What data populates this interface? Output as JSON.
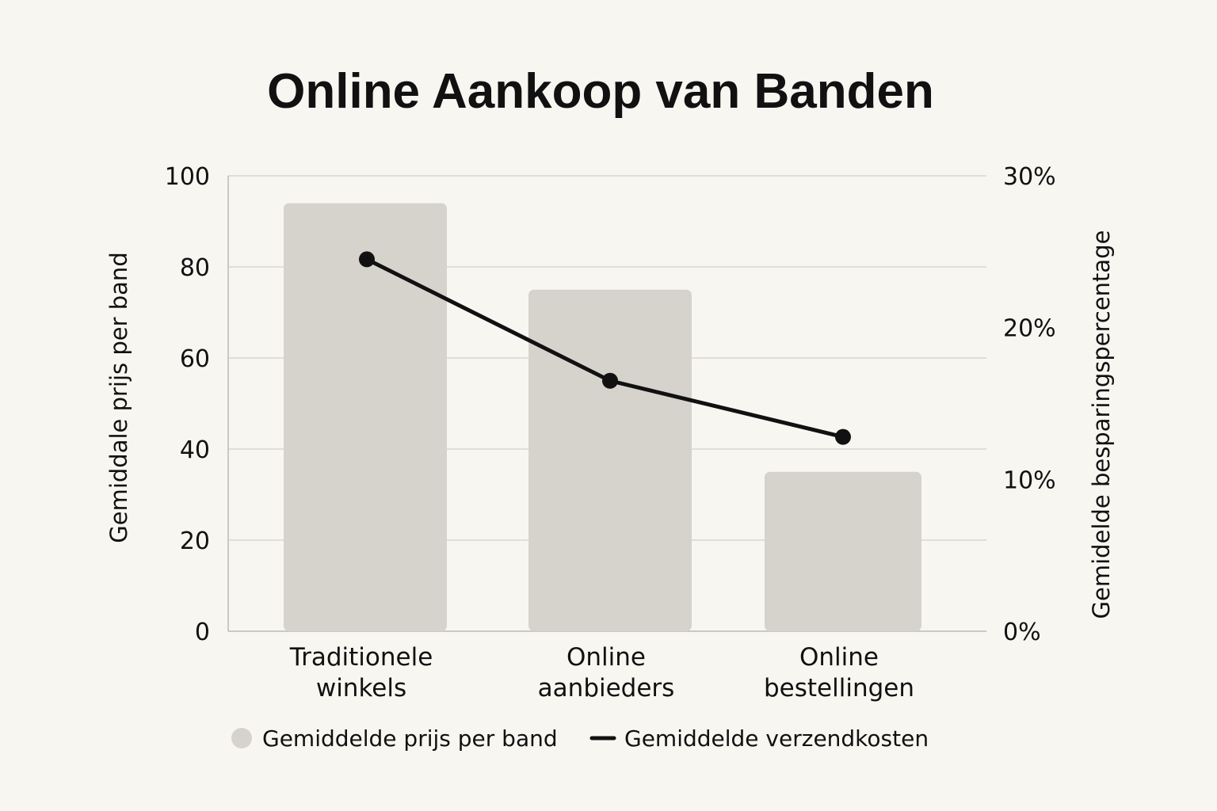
{
  "chart_data": {
    "type": "bar",
    "title": "Online Aankoop van Banden",
    "categories": [
      [
        "Traditionele",
        "winkels"
      ],
      [
        "Online",
        "aanbieders"
      ],
      [
        "Online",
        "bestellingen"
      ]
    ],
    "ylabel": "Gemiddale prijs per band",
    "ylabel_right": "Gemidelde besparingspercentage",
    "ylim": [
      0,
      100
    ],
    "yticks": [
      "0",
      "20",
      "40",
      "60",
      "80",
      "100"
    ],
    "y2lim": [
      0,
      30
    ],
    "y2ticks": [
      "0%",
      "10%",
      "20%",
      "30%"
    ],
    "grid": true,
    "legend_position": "bottom",
    "series": [
      {
        "name": "Gemiddelde prijs per band",
        "type": "bar",
        "axis": "left",
        "color": "#d6d3cd",
        "values": [
          94,
          75,
          35
        ]
      },
      {
        "name": "Gemiddelde verzendkosten",
        "type": "line",
        "axis": "right",
        "color": "#111111",
        "values": [
          24.5,
          16.5,
          12.8
        ]
      }
    ]
  }
}
